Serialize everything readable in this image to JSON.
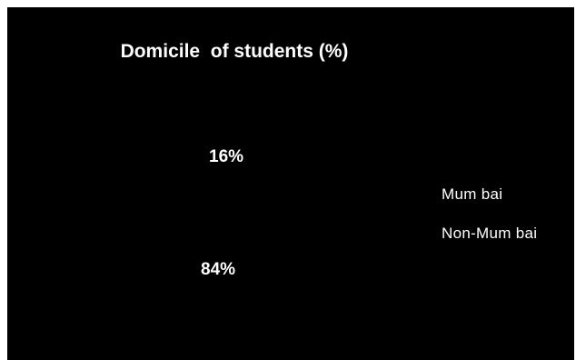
{
  "chart_data": {
    "type": "pie",
    "title": "Domicile  of students (%)",
    "categories": [
      "Mumbai",
      "Non-Mumbai"
    ],
    "values": [
      16,
      84
    ],
    "data_labels": [
      "16%",
      "84%"
    ],
    "colors": [
      "#000000",
      "#000000"
    ],
    "legend_labels": [
      "Mum bai",
      "Non-Mum bai"
    ],
    "legend_position": "right"
  }
}
